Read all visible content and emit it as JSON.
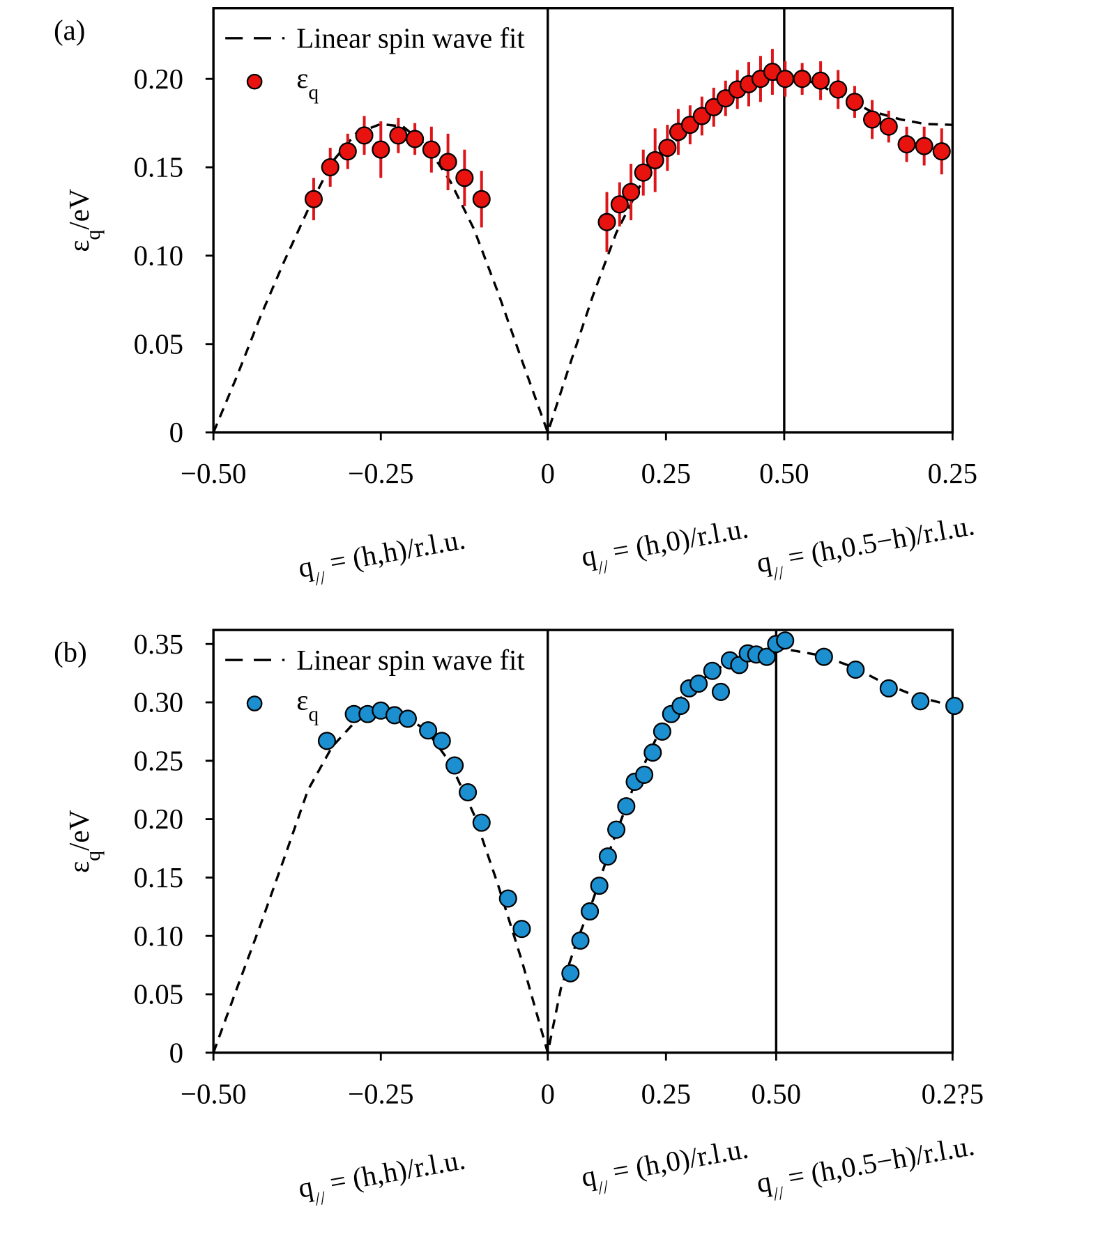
{
  "chart_data": [
    {
      "type": "scatter",
      "panel_label": "(a)",
      "ylabel": [
        "ε",
        "q",
        "/eV"
      ],
      "xlabels": [
        [
          "q",
          "//",
          " = (h,h)/r.l.u."
        ],
        [
          "q",
          "//",
          " = (h,0)/r.l.u."
        ],
        [
          "q",
          "//",
          " = (h,0.5−h)/r.l.u."
        ]
      ],
      "xlim": [
        -0.707,
        0.856
      ],
      "xticks": [
        {
          "value": -0.707,
          "label": "−0.50"
        },
        {
          "value": -0.353,
          "label": "−0.25"
        },
        0,
        0.25,
        {
          "value": 0.5,
          "label": "0.50"
        },
        {
          "value": 0.856,
          "label": "0.25"
        }
      ],
      "ylim": [
        0,
        0.24
      ],
      "yticks": [
        0,
        0.05,
        {
          "value": 0.1,
          "label": "0.10"
        },
        0.15,
        {
          "value": 0.2,
          "label": "0.20"
        }
      ],
      "vlines": [
        0,
        0.5
      ],
      "series": [
        {
          "name": "Linear spin wave fit",
          "kind": "line",
          "color": "#000000",
          "dashed": true,
          "x": [
            -0.707,
            -0.657,
            -0.607,
            -0.557,
            -0.507,
            -0.456,
            -0.406,
            -0.353,
            -0.306,
            -0.256,
            -0.206,
            -0.156,
            -0.105,
            -0.055,
            0,
            0.045,
            0.095,
            0.145,
            0.196,
            0.246,
            0.296,
            0.346,
            0.396,
            0.446,
            0.5,
            0.564,
            0.63,
            0.681,
            0.747,
            0.798,
            0.856
          ],
          "values": [
            0,
            0.032,
            0.066,
            0.097,
            0.126,
            0.153,
            0.169,
            0.1745,
            0.173,
            0.162,
            0.142,
            0.115,
            0.079,
            0.041,
            0,
            0.037,
            0.077,
            0.113,
            0.14,
            0.157,
            0.173,
            0.184,
            0.193,
            0.199,
            0.2,
            0.198,
            0.189,
            0.182,
            0.177,
            0.1745,
            0.174
          ]
        },
        {
          "name": "ε",
          "name_sub": "q",
          "kind": "points",
          "color": "#e8130f",
          "error_color": "#dd1418",
          "x": [
            -0.495,
            -0.46,
            -0.423,
            -0.388,
            -0.353,
            -0.316,
            -0.281,
            -0.246,
            -0.211,
            -0.176,
            -0.14,
            0.125,
            0.152,
            0.176,
            0.202,
            0.227,
            0.253,
            0.276,
            0.301,
            0.326,
            0.351,
            0.376,
            0.401,
            0.425,
            0.45,
            0.475,
            0.502,
            0.538,
            0.577,
            0.614,
            0.649,
            0.686,
            0.721,
            0.759,
            0.796,
            0.833
          ],
          "values": [
            0.132,
            0.15,
            0.159,
            0.168,
            0.16,
            0.168,
            0.166,
            0.16,
            0.153,
            0.144,
            0.132,
            0.119,
            0.129,
            0.136,
            0.147,
            0.154,
            0.161,
            0.17,
            0.174,
            0.179,
            0.184,
            0.189,
            0.194,
            0.197,
            0.2,
            0.204,
            0.2,
            0.2,
            0.199,
            0.194,
            0.187,
            0.177,
            0.173,
            0.163,
            0.162,
            0.159
          ],
          "errors": [
            0.012,
            0.011,
            0.01,
            0.011,
            0.016,
            0.01,
            0.009,
            0.013,
            0.016,
            0.016,
            0.016,
            0.017,
            0.0125,
            0.016,
            0.013,
            0.018,
            0.013,
            0.013,
            0.011,
            0.011,
            0.011,
            0.01,
            0.011,
            0.0125,
            0.013,
            0.013,
            0.01,
            0.009,
            0.011,
            0.011,
            0.009,
            0.011,
            0.009,
            0.01,
            0.011,
            0.013
          ]
        }
      ]
    },
    {
      "type": "scatter",
      "panel_label": "(b)",
      "ylabel": [
        "ε",
        "q",
        "/eV"
      ],
      "xlabels": [
        [
          "q",
          "//",
          " = (h,h)/r.l.u."
        ],
        [
          "q",
          "//",
          " = (h,0)/r.l.u."
        ],
        [
          "q",
          "//",
          " = (h,0.5−h)/r.l.u."
        ]
      ],
      "xlim": [
        -0.707,
        0.856
      ],
      "xticks": [
        {
          "value": -0.707,
          "label": "−0.50"
        },
        {
          "value": -0.353,
          "label": "−0.25"
        },
        0,
        0.25,
        {
          "value": 0.483,
          "label": "0.50"
        },
        {
          "value": 0.856,
          "label": "0.2?5"
        }
      ],
      "ylim": [
        0,
        0.362
      ],
      "yticks": [
        0,
        0.05,
        {
          "value": 0.1,
          "label": "0.10"
        },
        0.15,
        {
          "value": 0.2,
          "label": "0.20"
        },
        0.25,
        {
          "value": 0.3,
          "label": "0.30"
        },
        0.35
      ],
      "vlines": [
        0,
        0.483
      ],
      "series": [
        {
          "name": "Linear spin wave fit",
          "kind": "line",
          "color": "#000000",
          "dashed": true,
          "x": [
            -0.707,
            -0.657,
            -0.607,
            -0.557,
            -0.507,
            -0.456,
            -0.406,
            -0.353,
            -0.306,
            -0.256,
            -0.206,
            -0.156,
            -0.105,
            -0.055,
            0,
            0.028,
            0.062,
            0.095,
            0.129,
            0.179,
            0.229,
            0.279,
            0.346,
            0.413,
            0.483,
            0.58,
            0.647,
            0.714,
            0.781,
            0.856
          ],
          "values": [
            0,
            0.0555,
            0.11,
            0.167,
            0.225,
            0.262,
            0.284,
            0.294,
            0.289,
            0.276,
            0.248,
            0.204,
            0.1435,
            0.079,
            0,
            0.0555,
            0.096,
            0.13,
            0.171,
            0.225,
            0.269,
            0.303,
            0.326,
            0.34,
            0.347,
            0.34,
            0.33,
            0.316,
            0.305,
            0.297
          ]
        },
        {
          "name": "ε",
          "name_sub": "q",
          "kind": "points",
          "color": "#1b8fcf",
          "error_color": "#2a9be0",
          "x": [
            -0.467,
            -0.41,
            -0.381,
            -0.353,
            -0.324,
            -0.296,
            -0.253,
            -0.224,
            -0.197,
            -0.169,
            -0.14,
            -0.084,
            -0.055,
            0.048,
            0.069,
            0.089,
            0.109,
            0.127,
            0.145,
            0.166,
            0.184,
            0.204,
            0.222,
            0.242,
            0.261,
            0.281,
            0.299,
            0.319,
            0.348,
            0.366,
            0.385,
            0.405,
            0.423,
            0.441,
            0.463,
            0.483,
            0.502,
            0.584,
            0.651,
            0.721,
            0.788,
            0.86
          ],
          "values": [
            0.267,
            0.29,
            0.29,
            0.293,
            0.289,
            0.286,
            0.276,
            0.267,
            0.246,
            0.223,
            0.197,
            0.132,
            0.106,
            0.068,
            0.096,
            0.121,
            0.143,
            0.168,
            0.191,
            0.211,
            0.232,
            0.238,
            0.257,
            0.275,
            0.29,
            0.297,
            0.312,
            0.316,
            0.327,
            0.309,
            0.336,
            0.332,
            0.342,
            0.341,
            0.339,
            0.35,
            0.353,
            0.339,
            0.328,
            0.312,
            0.301,
            0.297
          ],
          "errors": [
            0.006,
            0.006,
            0.006,
            0.006,
            0.006,
            0.006,
            0.006,
            0.006,
            0.006,
            0.006,
            0.006,
            0.006,
            0.006,
            0.006,
            0.006,
            0.006,
            0.006,
            0.006,
            0.006,
            0.006,
            0.006,
            0.006,
            0.006,
            0.006,
            0.006,
            0.006,
            0.006,
            0.006,
            0.006,
            0.006,
            0.006,
            0.006,
            0.006,
            0.006,
            0.006,
            0.006,
            0.006,
            0.006,
            0.006,
            0.006,
            0.006,
            0.006
          ]
        }
      ]
    }
  ]
}
